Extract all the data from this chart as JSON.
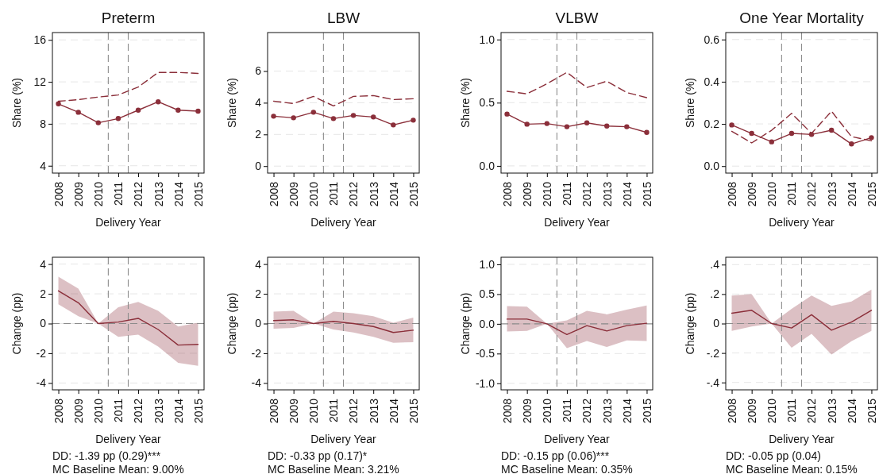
{
  "chart_data": [
    {
      "type": "line",
      "title": "Preterm",
      "xlabel": "Delivery Year",
      "ylabel": "Share (%)",
      "x": [
        2008,
        2009,
        2010,
        2011,
        2012,
        2013,
        2014,
        2015
      ],
      "xlim": [
        2007.7,
        2015.3
      ],
      "xticks": [
        2008,
        2009,
        2010,
        2011,
        2012,
        2013,
        2014,
        2015
      ],
      "ylim": [
        3.3,
        16.7
      ],
      "yticks": [
        4,
        8,
        12,
        16
      ],
      "grid": "y",
      "ref_lines": [
        {
          "axis": "x",
          "value": 2010.5,
          "color": "#8c8c8c",
          "line_style": "dashed"
        },
        {
          "axis": "x",
          "value": 2011.5,
          "color": "#8c8c8c",
          "line_style": "dashed"
        }
      ],
      "series": [
        {
          "color": "#8b2f3a",
          "marker": "circle",
          "line_style": "solid",
          "values": [
            9.9,
            9.1,
            8.1,
            8.5,
            9.3,
            10.1,
            9.3,
            9.2
          ]
        },
        {
          "color": "#8b2f3a",
          "marker": "none",
          "line_style": "dashed",
          "values": [
            10.15,
            10.3,
            10.55,
            10.75,
            11.5,
            12.9,
            12.9,
            12.8
          ]
        }
      ]
    },
    {
      "type": "line",
      "title": "LBW",
      "xlabel": "Delivery Year",
      "ylabel": "Share (%)",
      "x": [
        2008,
        2009,
        2010,
        2011,
        2012,
        2013,
        2014,
        2015
      ],
      "xlim": [
        2007.7,
        2015.3
      ],
      "xticks": [
        2008,
        2009,
        2010,
        2011,
        2012,
        2013,
        2014,
        2015
      ],
      "ylim": [
        -0.44,
        8.43
      ],
      "yticks": [
        0,
        2,
        4,
        6
      ],
      "grid": "y",
      "ref_lines": [
        {
          "axis": "x",
          "value": 2010.5,
          "color": "#8c8c8c",
          "line_style": "dashed"
        },
        {
          "axis": "x",
          "value": 2011.5,
          "color": "#8c8c8c",
          "line_style": "dashed"
        }
      ],
      "series": [
        {
          "color": "#8b2f3a",
          "marker": "circle",
          "line_style": "solid",
          "values": [
            3.15,
            3.05,
            3.4,
            3.0,
            3.2,
            3.1,
            2.6,
            2.9
          ]
        },
        {
          "color": "#8b2f3a",
          "marker": "none",
          "line_style": "dashed",
          "values": [
            4.1,
            3.95,
            4.4,
            3.8,
            4.4,
            4.45,
            4.2,
            4.25
          ]
        }
      ]
    },
    {
      "type": "line",
      "title": "VLBW",
      "xlabel": "Delivery Year",
      "ylabel": "Share (%)",
      "x": [
        2008,
        2009,
        2010,
        2011,
        2012,
        2013,
        2014,
        2015
      ],
      "xlim": [
        2007.7,
        2015.3
      ],
      "xticks": [
        2008,
        2009,
        2010,
        2011,
        2012,
        2013,
        2014,
        2015
      ],
      "ylim": [
        -0.057,
        1.055
      ],
      "yticks": [
        {
          "value": 0,
          "label": "0.0"
        },
        {
          "value": 0.5,
          "label": "0.5"
        },
        {
          "value": 1,
          "label": "1.0"
        }
      ],
      "grid": "y",
      "ref_lines": [
        {
          "axis": "x",
          "value": 2010.5,
          "color": "#8c8c8c",
          "line_style": "dashed"
        },
        {
          "axis": "x",
          "value": 2011.5,
          "color": "#8c8c8c",
          "line_style": "dashed"
        }
      ],
      "series": [
        {
          "color": "#8b2f3a",
          "marker": "circle",
          "line_style": "solid",
          "values": [
            0.41,
            0.33,
            0.335,
            0.31,
            0.34,
            0.315,
            0.31,
            0.265
          ]
        },
        {
          "color": "#8b2f3a",
          "marker": "none",
          "line_style": "dashed",
          "values": [
            0.59,
            0.57,
            0.65,
            0.74,
            0.62,
            0.67,
            0.58,
            0.54
          ]
        }
      ]
    },
    {
      "type": "line",
      "title": "One Year Mortality",
      "xlabel": "Delivery Year",
      "ylabel": "Share (%)",
      "x": [
        2008,
        2009,
        2010,
        2011,
        2012,
        2013,
        2014,
        2015
      ],
      "xlim": [
        2007.7,
        2015.3
      ],
      "xticks": [
        2008,
        2009,
        2010,
        2011,
        2012,
        2013,
        2014,
        2015
      ],
      "ylim": [
        -0.033,
        0.633
      ],
      "yticks": [
        {
          "value": 0,
          "label": "0.0"
        },
        {
          "value": 0.2,
          "label": "0.2"
        },
        {
          "value": 0.4,
          "label": "0.4"
        },
        {
          "value": 0.6,
          "label": "0.6"
        }
      ],
      "grid": "y",
      "ref_lines": [
        {
          "axis": "x",
          "value": 2010.5,
          "color": "#8c8c8c",
          "line_style": "dashed"
        },
        {
          "axis": "x",
          "value": 2011.5,
          "color": "#8c8c8c",
          "line_style": "dashed"
        }
      ],
      "series": [
        {
          "color": "#8b2f3a",
          "marker": "circle",
          "line_style": "solid",
          "values": [
            0.195,
            0.155,
            0.115,
            0.155,
            0.15,
            0.17,
            0.105,
            0.135
          ]
        },
        {
          "color": "#8b2f3a",
          "marker": "none",
          "line_style": "dashed",
          "values": [
            0.165,
            0.11,
            0.17,
            0.25,
            0.155,
            0.26,
            0.14,
            0.12
          ]
        }
      ]
    },
    {
      "type": "line",
      "xlabel": "Delivery Year",
      "ylabel": "Change (pp)",
      "x": [
        2008,
        2009,
        2010,
        2011,
        2012,
        2013,
        2014,
        2015
      ],
      "xlim": [
        2007.7,
        2015.3
      ],
      "xticks": [
        2008,
        2009,
        2010,
        2011,
        2012,
        2013,
        2014,
        2015
      ],
      "ylim": [
        -4.46,
        4.46
      ],
      "yticks": [
        -4,
        -2,
        0,
        2,
        4
      ],
      "grid": "y",
      "ref_lines": [
        {
          "axis": "x",
          "value": 2010.5,
          "color": "#8c8c8c",
          "line_style": "dashed"
        },
        {
          "axis": "x",
          "value": 2011.5,
          "color": "#8c8c8c",
          "line_style": "dashed"
        },
        {
          "axis": "y",
          "value": 0,
          "color": "#8c8c8c",
          "line_style": "dashed"
        }
      ],
      "annotations": [
        "DD: -1.39 pp (0.29)***",
        "MC Baseline Mean: 9.00%"
      ],
      "series": [
        {
          "color": "#8b2f3a",
          "marker": "none",
          "line_style": "solid",
          "values": [
            2.2,
            1.4,
            0,
            0.1,
            0.35,
            -0.4,
            -1.45,
            -1.4
          ],
          "lower": [
            1.3,
            0.5,
            0,
            -0.9,
            -0.75,
            -1.55,
            -2.65,
            -2.85
          ],
          "upper": [
            3.15,
            2.35,
            0,
            1.1,
            1.45,
            0.85,
            -0.2,
            0.05
          ]
        }
      ]
    },
    {
      "type": "line",
      "xlabel": "Delivery Year",
      "ylabel": "Change (pp)",
      "x": [
        2008,
        2009,
        2010,
        2011,
        2012,
        2013,
        2014,
        2015
      ],
      "xlim": [
        2007.7,
        2015.3
      ],
      "xticks": [
        2008,
        2009,
        2010,
        2011,
        2012,
        2013,
        2014,
        2015
      ],
      "ylim": [
        -4.46,
        4.46
      ],
      "yticks": [
        -4,
        -2,
        0,
        2,
        4
      ],
      "grid": "y",
      "ref_lines": [
        {
          "axis": "x",
          "value": 2010.5,
          "color": "#8c8c8c",
          "line_style": "dashed"
        },
        {
          "axis": "x",
          "value": 2011.5,
          "color": "#8c8c8c",
          "line_style": "dashed"
        },
        {
          "axis": "y",
          "value": 0,
          "color": "#8c8c8c",
          "line_style": "dashed"
        }
      ],
      "annotations": [
        "DD: -0.33 pp (0.17)*",
        "MC Baseline Mean: 3.21%"
      ],
      "series": [
        {
          "color": "#8b2f3a",
          "marker": "none",
          "line_style": "solid",
          "values": [
            0.2,
            0.25,
            0,
            0.15,
            0,
            -0.2,
            -0.6,
            -0.45
          ],
          "lower": [
            -0.35,
            -0.3,
            0,
            -0.4,
            -0.6,
            -0.9,
            -1.3,
            -1.25
          ],
          "upper": [
            0.8,
            0.85,
            0,
            0.8,
            0.7,
            0.5,
            0.05,
            0.4
          ]
        }
      ]
    },
    {
      "type": "line",
      "xlabel": "Delivery Year",
      "ylabel": "Change (pp)",
      "x": [
        2008,
        2009,
        2010,
        2011,
        2012,
        2013,
        2014,
        2015
      ],
      "xlim": [
        2007.7,
        2015.3
      ],
      "xticks": [
        2008,
        2009,
        2010,
        2011,
        2012,
        2013,
        2014,
        2015
      ],
      "ylim": [
        -1.11,
        1.12
      ],
      "yticks": [
        {
          "value": -1,
          "label": "-1.0"
        },
        {
          "value": -0.5,
          "label": "-0.5"
        },
        {
          "value": 0,
          "label": "0.0"
        },
        {
          "value": 0.5,
          "label": "0.5"
        },
        {
          "value": 1,
          "label": "1.0"
        }
      ],
      "grid": "y",
      "ref_lines": [
        {
          "axis": "x",
          "value": 2010.5,
          "color": "#8c8c8c",
          "line_style": "dashed"
        },
        {
          "axis": "x",
          "value": 2011.5,
          "color": "#8c8c8c",
          "line_style": "dashed"
        },
        {
          "axis": "y",
          "value": 0,
          "color": "#8c8c8c",
          "line_style": "dashed"
        }
      ],
      "annotations": [
        "DD: -0.15 pp (0.06)***",
        "MC Baseline Mean: 0.35%"
      ],
      "series": [
        {
          "color": "#8b2f3a",
          "marker": "none",
          "line_style": "solid",
          "values": [
            0.08,
            0.08,
            0,
            -0.18,
            -0.03,
            -0.12,
            -0.03,
            0.01
          ],
          "lower": [
            -0.13,
            -0.12,
            0,
            -0.41,
            -0.29,
            -0.39,
            -0.28,
            -0.29
          ],
          "upper": [
            0.3,
            0.29,
            0,
            0.06,
            0.22,
            0.16,
            0.24,
            0.31
          ]
        }
      ]
    },
    {
      "type": "line",
      "xlabel": "Delivery Year",
      "ylabel": "Change (pp)",
      "x": [
        2008,
        2009,
        2010,
        2011,
        2012,
        2013,
        2014,
        2015
      ],
      "xlim": [
        2007.7,
        2015.3
      ],
      "xticks": [
        2008,
        2009,
        2010,
        2011,
        2012,
        2013,
        2014,
        2015
      ],
      "ylim": [
        -0.45,
        0.45
      ],
      "yticks": [
        {
          "value": -0.4,
          "label": "-.4"
        },
        {
          "value": -0.2,
          "label": "-.2"
        },
        0,
        {
          "value": 0.2,
          "label": ".2"
        },
        {
          "value": 0.4,
          "label": ".4"
        }
      ],
      "grid": "y",
      "ref_lines": [
        {
          "axis": "x",
          "value": 2010.5,
          "color": "#8c8c8c",
          "line_style": "dashed"
        },
        {
          "axis": "x",
          "value": 2011.5,
          "color": "#8c8c8c",
          "line_style": "dashed"
        },
        {
          "axis": "y",
          "value": 0,
          "color": "#8c8c8c",
          "line_style": "dashed"
        }
      ],
      "annotations": [
        "DD: -0.05 pp (0.04)",
        "MC Baseline Mean: 0.15%"
      ],
      "series": [
        {
          "color": "#8b2f3a",
          "marker": "none",
          "line_style": "solid",
          "values": [
            0.07,
            0.09,
            0,
            -0.03,
            0.06,
            -0.045,
            0.01,
            0.09
          ],
          "lower": [
            -0.05,
            -0.02,
            0,
            -0.165,
            -0.07,
            -0.21,
            -0.12,
            -0.05
          ],
          "upper": [
            0.19,
            0.2,
            0,
            0.1,
            0.19,
            0.12,
            0.15,
            0.23
          ]
        }
      ]
    }
  ]
}
